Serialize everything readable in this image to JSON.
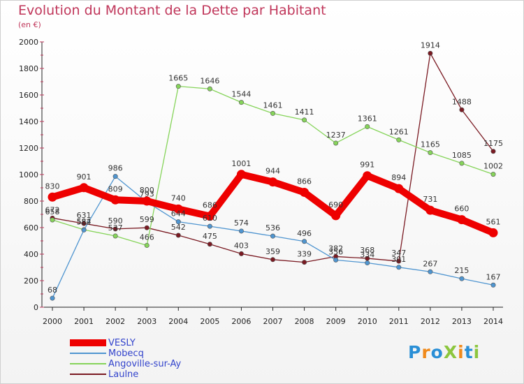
{
  "header": {
    "title": "Evolution du Montant de la Dette par Habitant",
    "subtitle": "(en €)"
  },
  "logo": {
    "text": "ProXiti",
    "colors": [
      "#2a8fd6",
      "#f08a1c",
      "#2a8fd6",
      "#8cc63e",
      "#f08a1c",
      "#2a8fd6",
      "#8cc63e"
    ]
  },
  "chart_data": {
    "type": "line",
    "x": [
      2000,
      2001,
      2002,
      2003,
      2004,
      2005,
      2006,
      2007,
      2008,
      2009,
      2010,
      2011,
      2012,
      2013,
      2014
    ],
    "ylim": [
      0,
      2000
    ],
    "yticks": [
      0,
      200,
      400,
      600,
      800,
      1000,
      1200,
      1400,
      1600,
      1800,
      2000
    ],
    "grid": false,
    "legend": "bottom-left",
    "series": [
      {
        "name": "Laulne",
        "color": "#7a1a22",
        "values": [
          672,
          631,
          590,
          599,
          542,
          475,
          403,
          359,
          339,
          382,
          368,
          347,
          1914,
          1488,
          1175
        ]
      },
      {
        "name": "Angoville-sur-Ay",
        "color": "#86d45a",
        "values": [
          658,
          584,
          537,
          466,
          1665,
          1646,
          1544,
          1461,
          1411,
          1237,
          1361,
          1261,
          1165,
          1085,
          1002
        ]
      },
      {
        "name": "Mobecq",
        "color": "#4f95d0",
        "values": [
          68,
          582,
          986,
          793,
          644,
          610,
          574,
          536,
          496,
          356,
          334,
          301,
          267,
          215,
          167
        ]
      },
      {
        "name": "VESLY",
        "color": "#ee0000",
        "values": [
          830,
          901,
          809,
          800,
          740,
          686,
          1001,
          944,
          866,
          690,
          991,
          894,
          731,
          660,
          561
        ]
      }
    ]
  },
  "legend_items": [
    {
      "name": "VESLY",
      "color": "#ee0000",
      "width": 10
    },
    {
      "name": "Mobecq",
      "color": "#4f95d0",
      "width": 2
    },
    {
      "name": "Angoville-sur-Ay",
      "color": "#86d45a",
      "width": 2
    },
    {
      "name": "Laulne",
      "color": "#7a1a22",
      "width": 2
    }
  ]
}
